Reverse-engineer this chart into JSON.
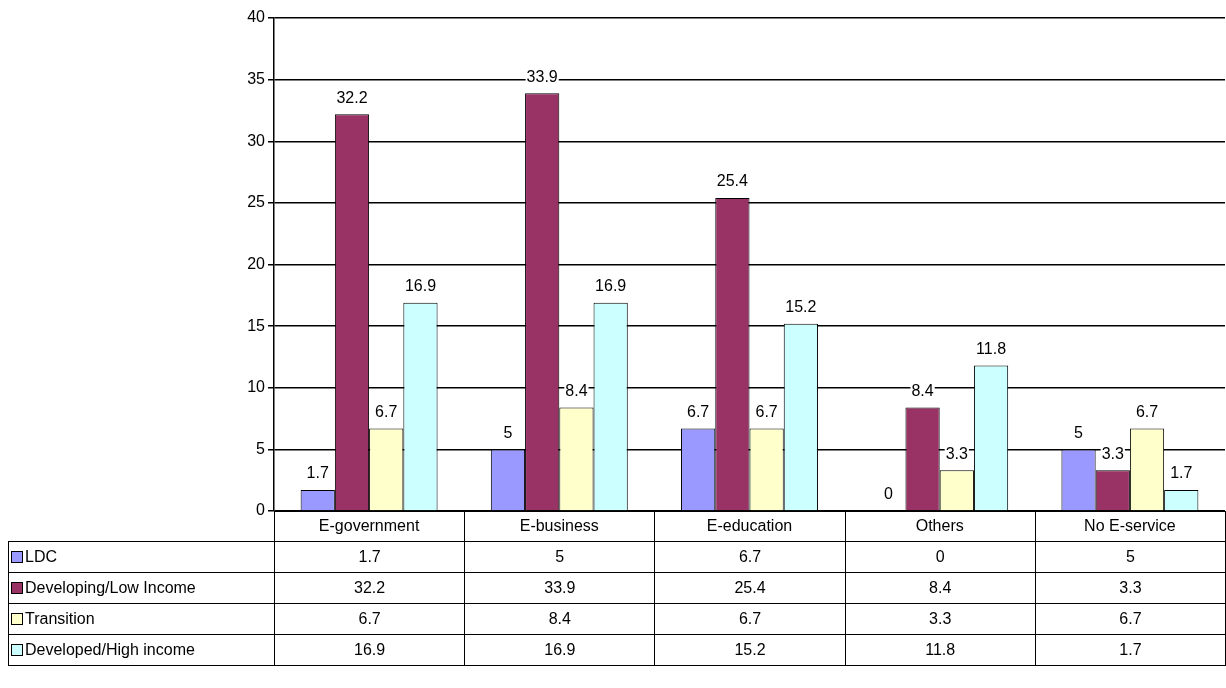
{
  "chart_data": {
    "type": "bar",
    "categories": [
      "E-government",
      "E-business",
      "E-education",
      "Others",
      "No E-service"
    ],
    "series": [
      {
        "name": "LDC",
        "color": "#9999ff",
        "values": [
          1.7,
          5,
          6.7,
          0,
          5
        ]
      },
      {
        "name": "Developing/Low Income",
        "color": "#993366",
        "values": [
          32.2,
          33.9,
          25.4,
          8.4,
          3.3
        ]
      },
      {
        "name": "Transition",
        "color": "#ffffcc",
        "values": [
          6.7,
          8.4,
          6.7,
          3.3,
          6.7
        ]
      },
      {
        "name": "Developed/High income",
        "color": "#ccffff",
        "values": [
          16.9,
          16.9,
          15.2,
          11.8,
          1.7
        ]
      }
    ],
    "ylim": [
      0,
      40
    ],
    "yticks": [
      0,
      5,
      10,
      15,
      20,
      25,
      30,
      35,
      40
    ],
    "grid": "y",
    "legend": "bottom left",
    "data_labels": true,
    "annotations": [
      "1.7",
      "5",
      "6.7",
      "0",
      "5",
      "32.2",
      "33.9",
      "25.4",
      "8.4",
      "3.3",
      "6.7",
      "8.4",
      "6.7",
      "3.3",
      "6.7",
      "16.9",
      "16.9",
      "15.2",
      "11.8",
      "1.7"
    ]
  }
}
